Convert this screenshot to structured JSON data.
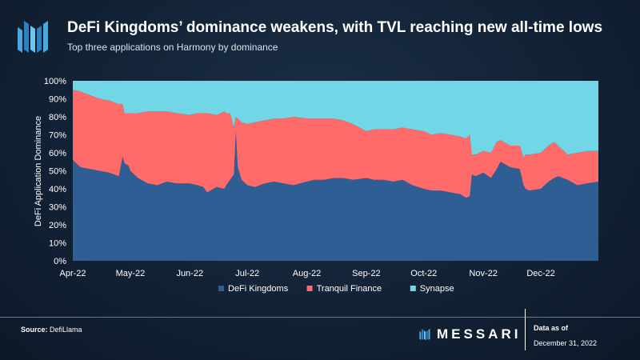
{
  "header": {
    "title": "DeFi Kingdoms’ dominance weakens, with TVL reaching new all-time lows",
    "subtitle": "Top three applications on Harmony by dominance"
  },
  "footer": {
    "source_label": "Source:",
    "source_value": "DefiLlama",
    "brand": "MESSARI",
    "data_as_of_label": "Data as of",
    "data_as_of_date": "December 31, 2022"
  },
  "colors": {
    "defi_kingdoms": "#2e5e94",
    "tranquil_finance": "#ff6b6b",
    "synapse": "#71d7e6"
  },
  "chart_data": {
    "type": "area",
    "stacked": true,
    "normalized": true,
    "ylabel": "DeFi Application Dominance",
    "xlabel": "",
    "ylim": [
      0,
      100
    ],
    "y_ticks": [
      "0%",
      "10%",
      "20%",
      "30%",
      "40%",
      "50%",
      "60%",
      "70%",
      "80%",
      "90%",
      "100%"
    ],
    "x_ticks": [
      "Apr-22",
      "May-22",
      "Jun-22",
      "Jul-22",
      "Aug-22",
      "Sep-22",
      "Oct-22",
      "Nov-22",
      "Dec-22"
    ],
    "x": [
      "2022-04-01",
      "2022-04-05",
      "2022-04-10",
      "2022-04-15",
      "2022-04-20",
      "2022-04-25",
      "2022-04-27",
      "2022-04-28",
      "2022-04-30",
      "2022-05-01",
      "2022-05-05",
      "2022-05-10",
      "2022-05-15",
      "2022-05-20",
      "2022-05-25",
      "2022-06-01",
      "2022-06-05",
      "2022-06-08",
      "2022-06-10",
      "2022-06-15",
      "2022-06-19",
      "2022-06-20",
      "2022-06-22",
      "2022-06-24",
      "2022-06-25",
      "2022-06-26",
      "2022-06-28",
      "2022-07-01",
      "2022-07-05",
      "2022-07-10",
      "2022-07-15",
      "2022-07-20",
      "2022-07-25",
      "2022-08-01",
      "2022-08-05",
      "2022-08-10",
      "2022-08-15",
      "2022-08-20",
      "2022-08-25",
      "2022-09-01",
      "2022-09-05",
      "2022-09-10",
      "2022-09-15",
      "2022-09-20",
      "2022-09-25",
      "2022-10-01",
      "2022-10-05",
      "2022-10-10",
      "2022-10-15",
      "2022-10-20",
      "2022-10-23",
      "2022-10-25",
      "2022-10-26",
      "2022-10-28",
      "2022-11-01",
      "2022-11-05",
      "2022-11-08",
      "2022-11-10",
      "2022-11-15",
      "2022-11-20",
      "2022-11-22",
      "2022-11-23",
      "2022-11-25",
      "2022-12-01",
      "2022-12-05",
      "2022-12-08",
      "2022-12-10",
      "2022-12-15",
      "2022-12-20",
      "2022-12-25",
      "2022-12-31"
    ],
    "series": [
      {
        "name": "DeFi Kingdoms",
        "values": [
          56,
          52,
          51,
          50,
          49,
          47,
          58,
          54,
          53,
          50,
          46,
          43,
          42,
          44,
          43,
          43,
          42,
          41,
          38,
          41,
          40,
          42,
          45,
          48,
          72,
          52,
          45,
          42,
          41,
          43,
          44,
          43,
          42,
          44,
          45,
          45,
          46,
          46,
          45,
          46,
          45,
          45,
          44,
          45,
          42,
          40,
          39,
          39,
          38,
          37,
          35,
          36,
          48,
          47,
          49,
          46,
          51,
          55,
          52,
          51,
          42,
          40,
          39,
          40,
          44,
          46,
          47,
          45,
          42,
          43,
          44
        ]
      },
      {
        "name": "Tranquil Finance",
        "values": [
          39,
          42,
          41,
          40,
          40,
          40,
          29,
          28,
          29,
          32,
          36,
          40,
          41,
          39,
          39,
          38,
          40,
          41,
          44,
          40,
          43,
          40,
          37,
          26,
          8,
          27,
          32,
          34,
          36,
          35,
          35,
          36,
          38,
          35,
          34,
          34,
          33,
          32,
          31,
          26,
          28,
          28,
          29,
          29,
          31,
          32,
          31,
          32,
          32,
          32,
          33,
          34,
          11,
          12,
          12,
          14,
          15,
          12,
          12,
          13,
          15,
          19,
          20,
          20,
          20,
          20,
          17,
          14,
          18,
          18,
          17
        ]
      },
      {
        "name": "Synapse",
        "values": [
          5,
          6,
          8,
          10,
          11,
          13,
          13,
          18,
          18,
          18,
          18,
          17,
          17,
          17,
          18,
          19,
          18,
          18,
          18,
          19,
          17,
          18,
          18,
          26,
          20,
          21,
          23,
          24,
          23,
          22,
          21,
          21,
          20,
          21,
          21,
          21,
          21,
          22,
          24,
          28,
          27,
          27,
          27,
          26,
          27,
          28,
          30,
          29,
          30,
          31,
          32,
          30,
          41,
          41,
          39,
          40,
          34,
          33,
          36,
          36,
          43,
          41,
          41,
          40,
          36,
          34,
          36,
          41,
          40,
          39,
          39
        ]
      }
    ],
    "legend": "bottom-center",
    "grid": false
  }
}
